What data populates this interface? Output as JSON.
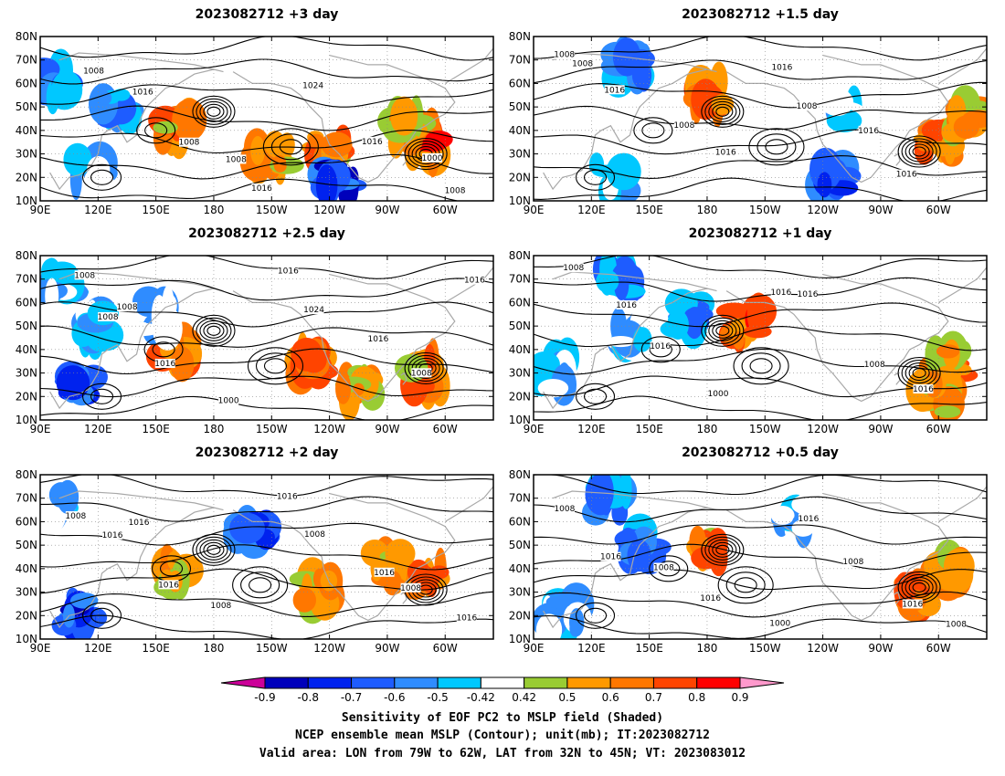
{
  "panels": [
    {
      "title": "2023082712 +3 day",
      "contour_labels": [
        "1008",
        "1016",
        "1008",
        "1008",
        "1016",
        "1024",
        "1016",
        "1000",
        "1008"
      ]
    },
    {
      "title": "2023082712 +1.5 day",
      "contour_labels": [
        "1008",
        "1016",
        "1008",
        "1016",
        "1016",
        "1008",
        "1016",
        "1016",
        "1008"
      ]
    },
    {
      "title": "2023082712 +2.5 day",
      "contour_labels": [
        "1008",
        "1008",
        "1016",
        "1000",
        "1016",
        "1024",
        "1016",
        "1008",
        "1016",
        "1008"
      ]
    },
    {
      "title": "2023082712 +1 day",
      "contour_labels": [
        "1008",
        "1016",
        "1016",
        "1000",
        "1016",
        "1016",
        "1008",
        "1016"
      ]
    },
    {
      "title": "2023082712 +2 day",
      "contour_labels": [
        "1008",
        "1016",
        "1016",
        "1008",
        "1016",
        "1008",
        "1016",
        "1008",
        "1016",
        "1016"
      ]
    },
    {
      "title": "2023082712 +0.5 day",
      "contour_labels": [
        "1008",
        "1016",
        "1008",
        "1016",
        "1000",
        "1016",
        "1008",
        "1016",
        "1008"
      ]
    }
  ],
  "axes": {
    "lat_ticks": [
      "80N",
      "70N",
      "60N",
      "50N",
      "40N",
      "30N",
      "20N",
      "10N"
    ],
    "lon_ticks": [
      "90E",
      "120E",
      "150E",
      "180",
      "150W",
      "120W",
      "90W",
      "60W"
    ],
    "lon_range_deg": [
      90,
      325
    ],
    "lat_range_deg": [
      10,
      80
    ]
  },
  "colorbar": {
    "ticks": [
      "-0.9",
      "-0.8",
      "-0.7",
      "-0.6",
      "-0.5",
      "-0.42",
      "0.42",
      "0.5",
      "0.6",
      "0.7",
      "0.8",
      "0.9"
    ],
    "colors": [
      "#cc0099",
      "#0000bb",
      "#0022ee",
      "#1e5cff",
      "#2f8cff",
      "#00c8ff",
      "#ffffff",
      "#99cc33",
      "#ff9900",
      "#ff7700",
      "#ff4400",
      "#ff0000",
      "#ff99cc"
    ]
  },
  "caption": {
    "line1": "Sensitivity of EOF PC2 to MSLP field (Shaded)",
    "line2": "NCEP ensemble mean MSLP (Contour); unit(mb); IT:2023082712",
    "line3": "Valid area: LON from 79W to 62W, LAT from 32N to 45N; VT: 2023083012"
  }
}
